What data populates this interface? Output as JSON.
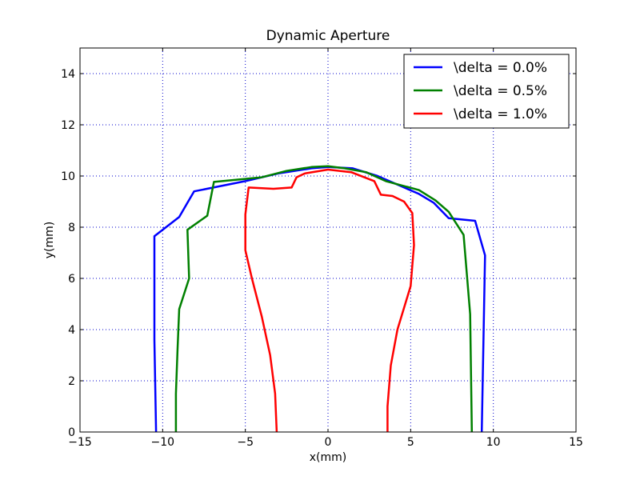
{
  "chart_data": {
    "type": "line",
    "title": "Dynamic Aperture",
    "xlabel": "x(mm)",
    "ylabel": "y(mm)",
    "xlim": [
      -15,
      15
    ],
    "ylim": [
      0,
      15
    ],
    "xticks": [
      -15,
      -10,
      -5,
      0,
      5,
      10,
      15
    ],
    "xtick_labels": [
      "−15",
      "−10",
      "−5",
      "0",
      "5",
      "10",
      "15"
    ],
    "yticks": [
      0,
      2,
      4,
      6,
      8,
      10,
      12,
      14
    ],
    "ytick_labels": [
      "0",
      "2",
      "4",
      "6",
      "8",
      "10",
      "12",
      "14"
    ],
    "grid": true,
    "legend_position": "top-right",
    "series": [
      {
        "name": "\\delta = 0.0%",
        "color": "#0000ff",
        "points": [
          [
            -10.4,
            0.0
          ],
          [
            -10.5,
            3.6
          ],
          [
            -10.5,
            7.65
          ],
          [
            -9.0,
            8.4
          ],
          [
            -8.1,
            9.4
          ],
          [
            -5.0,
            9.8
          ],
          [
            -3.0,
            10.1
          ],
          [
            -1.0,
            10.3
          ],
          [
            0.0,
            10.35
          ],
          [
            1.5,
            10.3
          ],
          [
            3.0,
            10.0
          ],
          [
            5.5,
            9.3
          ],
          [
            6.4,
            8.95
          ],
          [
            7.3,
            8.35
          ],
          [
            8.9,
            8.25
          ],
          [
            9.5,
            6.9
          ],
          [
            9.3,
            0.0
          ]
        ]
      },
      {
        "name": "\\delta = 0.5%",
        "color": "#008000",
        "points": [
          [
            -9.2,
            0.0
          ],
          [
            -9.2,
            1.5
          ],
          [
            -9.1,
            3.2
          ],
          [
            -9.0,
            4.8
          ],
          [
            -8.4,
            6.0
          ],
          [
            -8.5,
            7.9
          ],
          [
            -7.3,
            8.45
          ],
          [
            -6.9,
            9.77
          ],
          [
            -4.0,
            9.95
          ],
          [
            -2.5,
            10.2
          ],
          [
            -1.0,
            10.35
          ],
          [
            0.0,
            10.38
          ],
          [
            1.0,
            10.3
          ],
          [
            2.3,
            10.15
          ],
          [
            3.5,
            9.8
          ],
          [
            5.5,
            9.45
          ],
          [
            6.5,
            9.05
          ],
          [
            7.3,
            8.6
          ],
          [
            8.2,
            7.7
          ],
          [
            8.6,
            4.6
          ],
          [
            8.7,
            0.0
          ]
        ]
      },
      {
        "name": "\\delta = 1.0%",
        "color": "#ff0000",
        "points": [
          [
            -3.1,
            0.0
          ],
          [
            -3.2,
            1.5
          ],
          [
            -3.5,
            3.0
          ],
          [
            -4.0,
            4.5
          ],
          [
            -4.6,
            6.0
          ],
          [
            -5.0,
            7.1
          ],
          [
            -5.0,
            8.5
          ],
          [
            -4.8,
            9.55
          ],
          [
            -3.3,
            9.5
          ],
          [
            -2.2,
            9.55
          ],
          [
            -1.9,
            9.95
          ],
          [
            -1.4,
            10.1
          ],
          [
            0.0,
            10.25
          ],
          [
            1.4,
            10.15
          ],
          [
            2.8,
            9.8
          ],
          [
            3.2,
            9.27
          ],
          [
            3.9,
            9.22
          ],
          [
            4.6,
            9.0
          ],
          [
            5.1,
            8.55
          ],
          [
            5.2,
            7.3
          ],
          [
            5.0,
            5.7
          ],
          [
            4.2,
            4.0
          ],
          [
            3.8,
            2.6
          ],
          [
            3.6,
            1.0
          ],
          [
            3.6,
            0.0
          ]
        ]
      }
    ]
  }
}
